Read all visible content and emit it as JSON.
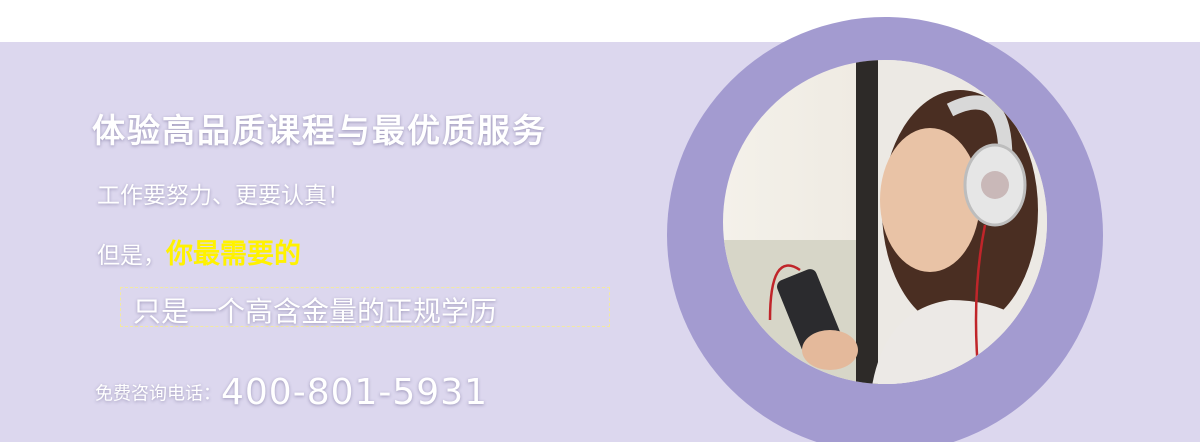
{
  "banner": {
    "headline": "体验高品质课程与最优质服务",
    "subline": "工作要努力、更要认真！",
    "lead": "但是，",
    "highlight": "你最需要的",
    "boxed_text": "只是一个高含金量的正规学历",
    "phone_label": "免费咨询电话：",
    "phone_number": "400-801-5931"
  }
}
